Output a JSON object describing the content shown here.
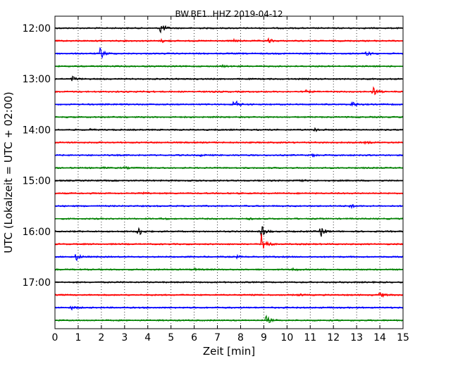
{
  "chart_data": {
    "type": "line",
    "title": "BW.BE1..HHZ 2019-04-12",
    "xlabel": "Zeit  [min]",
    "ylabel": "UTC (Lokalzeit = UTC + 02:00)",
    "xlim": [
      0,
      15
    ],
    "x_ticks": [
      "0",
      "1",
      "2",
      "3",
      "4",
      "5",
      "6",
      "7",
      "8",
      "9",
      "10",
      "11",
      "12",
      "13",
      "14",
      "15"
    ],
    "y_tick_labels": [
      "12:00",
      "13:00",
      "14:00",
      "15:00",
      "16:00",
      "17:00"
    ],
    "trace_interval_minutes": 15,
    "grid": "vertical dotted lines at each minute",
    "trace_colors": [
      "#000000",
      "#ff0000",
      "#0000ff",
      "#008000"
    ],
    "traces": [
      {
        "start": "12:00",
        "color": "#000000",
        "events": [
          {
            "t": 4.55,
            "amp": 1.0
          }
        ]
      },
      {
        "start": "12:15",
        "color": "#ff0000",
        "events": [
          {
            "t": 4.6,
            "amp": 0.25
          },
          {
            "t": 7.7,
            "amp": 0.2
          },
          {
            "t": 9.2,
            "amp": 0.35
          }
        ]
      },
      {
        "start": "12:30",
        "color": "#0000ff",
        "events": [
          {
            "t": 1.95,
            "amp": 1.0
          },
          {
            "t": 13.4,
            "amp": 0.45
          }
        ]
      },
      {
        "start": "12:45",
        "color": "#008000",
        "events": [
          {
            "t": 7.2,
            "amp": 0.15
          }
        ]
      },
      {
        "start": "13:00",
        "color": "#000000",
        "events": [
          {
            "t": 0.75,
            "amp": 0.45
          }
        ]
      },
      {
        "start": "13:15",
        "color": "#ff0000",
        "events": [
          {
            "t": 3.8,
            "amp": 0.2
          },
          {
            "t": 10.8,
            "amp": 0.2
          },
          {
            "t": 13.7,
            "amp": 0.8
          }
        ]
      },
      {
        "start": "13:30",
        "color": "#0000ff",
        "events": [
          {
            "t": 7.7,
            "amp": 1.0
          },
          {
            "t": 12.8,
            "amp": 0.5
          }
        ]
      },
      {
        "start": "13:45",
        "color": "#008000",
        "events": []
      },
      {
        "start": "14:00",
        "color": "#000000",
        "events": [
          {
            "t": 1.4,
            "amp": 0.2
          },
          {
            "t": 11.2,
            "amp": 0.4
          }
        ]
      },
      {
        "start": "14:15",
        "color": "#ff0000",
        "events": [
          {
            "t": 13.4,
            "amp": 0.2
          }
        ]
      },
      {
        "start": "14:30",
        "color": "#0000ff",
        "events": [
          {
            "t": 6.2,
            "amp": 0.2
          },
          {
            "t": 11.1,
            "amp": 0.2
          }
        ]
      },
      {
        "start": "14:45",
        "color": "#008000",
        "events": [
          {
            "t": 2.0,
            "amp": 0.15
          },
          {
            "t": 3.0,
            "amp": 0.15
          }
        ]
      },
      {
        "start": "15:00",
        "color": "#000000",
        "events": [
          {
            "t": 10.5,
            "amp": 0.2
          }
        ]
      },
      {
        "start": "15:15",
        "color": "#ff0000",
        "events": [
          {
            "t": 3.8,
            "amp": 0.15
          }
        ]
      },
      {
        "start": "15:30",
        "color": "#0000ff",
        "events": [
          {
            "t": 12.7,
            "amp": 0.35
          }
        ]
      },
      {
        "start": "15:45",
        "color": "#008000",
        "events": [
          {
            "t": 4.6,
            "amp": 0.15
          },
          {
            "t": 8.3,
            "amp": 0.15
          }
        ]
      },
      {
        "start": "16:00",
        "color": "#000000",
        "events": [
          {
            "t": 3.55,
            "amp": 1.0
          },
          {
            "t": 8.9,
            "amp": 1.0
          },
          {
            "t": 11.45,
            "amp": 0.9
          }
        ]
      },
      {
        "start": "16:15",
        "color": "#ff0000",
        "events": [
          {
            "t": 8.9,
            "amp": 2.6
          }
        ]
      },
      {
        "start": "16:30",
        "color": "#0000ff",
        "events": [
          {
            "t": 0.9,
            "amp": 0.6
          },
          {
            "t": 7.8,
            "amp": 0.2
          }
        ]
      },
      {
        "start": "16:45",
        "color": "#008000",
        "events": [
          {
            "t": 6.0,
            "amp": 0.15
          },
          {
            "t": 10.2,
            "amp": 0.3
          }
        ]
      },
      {
        "start": "17:00",
        "color": "#000000",
        "events": []
      },
      {
        "start": "17:15",
        "color": "#ff0000",
        "events": [
          {
            "t": 10.5,
            "amp": 0.2
          },
          {
            "t": 14.0,
            "amp": 0.4
          }
        ]
      },
      {
        "start": "17:30",
        "color": "#0000ff",
        "events": [
          {
            "t": 0.7,
            "amp": 0.3
          }
        ]
      },
      {
        "start": "17:45",
        "color": "#008000",
        "events": [
          {
            "t": 9.1,
            "amp": 0.7
          }
        ]
      }
    ]
  }
}
